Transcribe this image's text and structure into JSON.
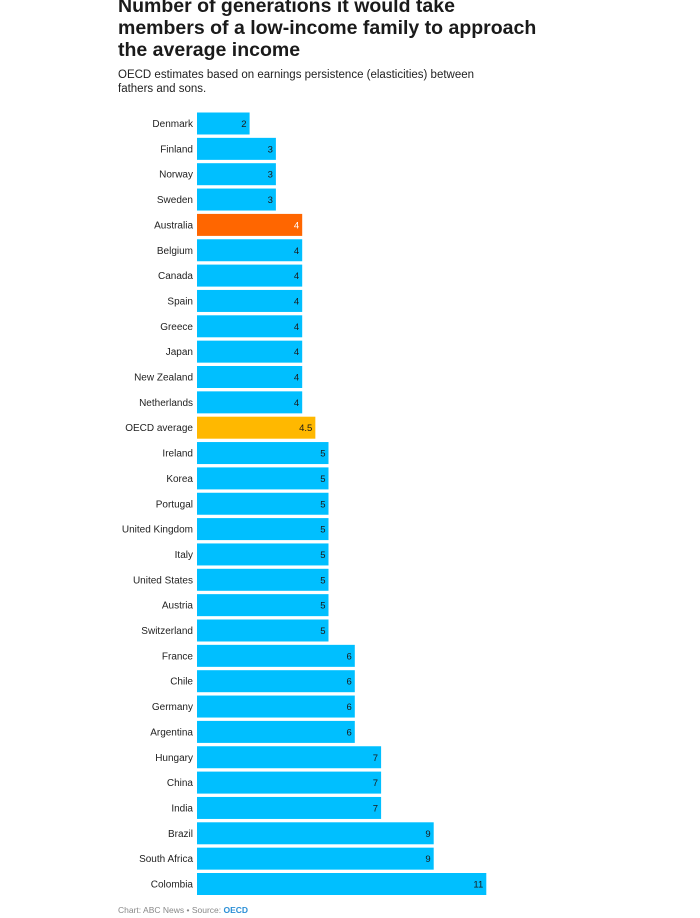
{
  "title": "Number of generations it would take members of a low-income family to approach the average income",
  "subtitle": "OECD estimates based on earnings persistence (elasticities) between fathers and sons.",
  "footer": {
    "credit": "Chart: ABC News • Source: ",
    "source_link": "OECD"
  },
  "colors": {
    "default": "#00bfff",
    "highlight": "#ff6600",
    "average": "#ffb800"
  },
  "chart_data": {
    "type": "bar",
    "orientation": "horizontal",
    "categories": [
      "Denmark",
      "Finland",
      "Norway",
      "Sweden",
      "Australia",
      "Belgium",
      "Canada",
      "Spain",
      "Greece",
      "Japan",
      "New Zealand",
      "Netherlands",
      "OECD average",
      "Ireland",
      "Korea",
      "Portugal",
      "United Kingdom",
      "Italy",
      "United States",
      "Austria",
      "Switzerland",
      "France",
      "Chile",
      "Germany",
      "Argentina",
      "Hungary",
      "China",
      "India",
      "Brazil",
      "South Africa",
      "Colombia"
    ],
    "values": [
      2,
      3,
      3,
      3,
      4,
      4,
      4,
      4,
      4,
      4,
      4,
      4,
      4.5,
      5,
      5,
      5,
      5,
      5,
      5,
      5,
      5,
      6,
      6,
      6,
      6,
      7,
      7,
      7,
      9,
      9,
      11
    ],
    "value_labels": [
      "2",
      "3",
      "3",
      "3",
      "4",
      "4",
      "4",
      "4",
      "4",
      "4",
      "4",
      "4",
      "4.5",
      "5",
      "5",
      "5",
      "5",
      "5",
      "5",
      "5",
      "5",
      "6",
      "6",
      "6",
      "6",
      "7",
      "7",
      "7",
      "9",
      "9",
      "11"
    ],
    "highlighted": {
      "Australia": "highlight",
      "OECD average": "average"
    },
    "xlim": [
      0,
      11
    ],
    "grid": false,
    "legend": "none"
  }
}
